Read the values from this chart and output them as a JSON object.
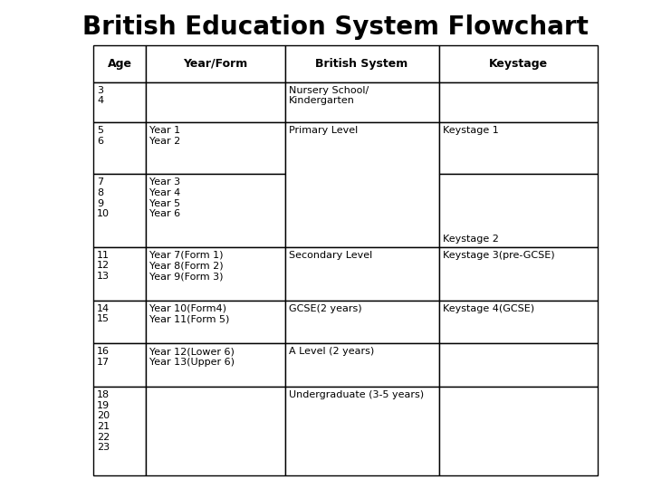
{
  "title": "British Education System Flowchart",
  "title_fontsize": 20,
  "title_fontweight": "bold",
  "headers": [
    "Age",
    "Year/Form",
    "British System",
    "Keystage"
  ],
  "header_fontsize": 9,
  "header_fontweight": "bold",
  "cell_fontsize": 8,
  "background_color": "#ffffff",
  "rows": [
    {
      "age": "3\n4",
      "year_form": "",
      "british_system": "Nursery School/\nKindergarten",
      "keystage": ""
    },
    {
      "age": "5\n6",
      "year_form": "Year 1\nYear 2",
      "british_system": "Primary Level",
      "keystage": "Keystage 1"
    },
    {
      "age": "7\n8\n9\n10",
      "year_form": "Year 3\nYear 4\nYear 5\nYear 6",
      "british_system": "",
      "keystage": "Keystage 2"
    },
    {
      "age": "11\n12\n13",
      "year_form": "Year 7(Form 1)\nYear 8(Form 2)\nYear 9(Form 3)",
      "british_system": "Secondary Level",
      "keystage": "Keystage 3(pre-GCSE)"
    },
    {
      "age": "14\n15",
      "year_form": "Year 10(Form4)\nYear 11(Form 5)",
      "british_system": "GCSE(2 years)",
      "keystage": "Keystage 4(GCSE)"
    },
    {
      "age": "16\n17",
      "year_form": "Year 12(Lower 6)\nYear 13(Upper 6)",
      "british_system": "A Level (2 years)",
      "keystage": ""
    },
    {
      "age": "18\n19\n20\n21\n22\n23",
      "year_form": "",
      "british_system": "Undergraduate (3-5 years)",
      "keystage": ""
    }
  ]
}
